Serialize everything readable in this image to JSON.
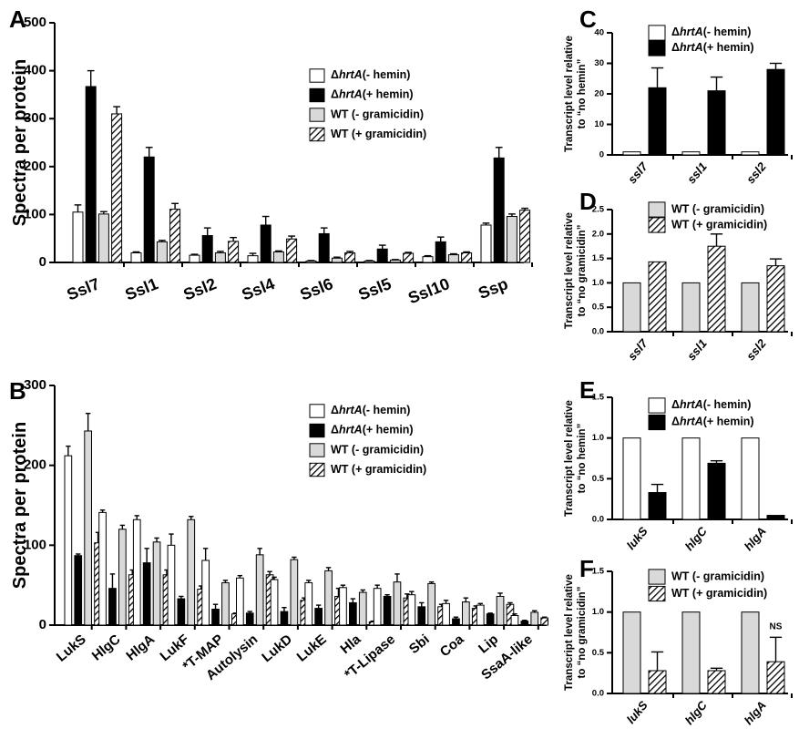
{
  "chart_data": [
    {
      "panel": "A",
      "type": "bar",
      "ylabel": "Spectra per protein",
      "ylim": [
        0,
        500
      ],
      "yticks": [
        0,
        100,
        200,
        300,
        400,
        500
      ],
      "categories": [
        "Ssl7",
        "Ssl1",
        "Ssl2",
        "Ssl4",
        "Ssl6",
        "Ssl5",
        "Ssl10",
        "Ssp"
      ],
      "series": [
        {
          "name": "ΔhrtA (- hemin)",
          "values": [
            105,
            20,
            15,
            14,
            3,
            3,
            12,
            78
          ],
          "errors": [
            15,
            2,
            2,
            5,
            1,
            1,
            2,
            4
          ],
          "style": "white"
        },
        {
          "name": "ΔhrtA (+ hemin)",
          "values": [
            367,
            220,
            56,
            78,
            60,
            28,
            43,
            218
          ],
          "errors": [
            33,
            20,
            16,
            18,
            12,
            8,
            10,
            22
          ],
          "style": "black"
        },
        {
          "name": "WT (- gramicidin)",
          "values": [
            101,
            43,
            20,
            22,
            9,
            5,
            16,
            96
          ],
          "errors": [
            5,
            3,
            3,
            2,
            2,
            1,
            2,
            5
          ],
          "style": "gray"
        },
        {
          "name": "WT (+ gramicidin)",
          "values": [
            310,
            111,
            44,
            49,
            20,
            19,
            20,
            109
          ],
          "errors": [
            15,
            12,
            8,
            6,
            3,
            2,
            2,
            4
          ],
          "style": "hatch"
        }
      ],
      "legend": "top-right"
    },
    {
      "panel": "B",
      "type": "bar",
      "ylabel": "Spectra per protein",
      "ylim": [
        0,
        300
      ],
      "yticks": [
        0,
        100,
        200,
        300
      ],
      "categories": [
        "LukS",
        "HlgC",
        "HlgA",
        "LukF",
        "*T-MAP",
        "Autolysin",
        "LukD",
        "LukE",
        "Hla",
        "*T-Lipase",
        "Sbi",
        "Coa",
        "Lip",
        "SsaA-like"
      ],
      "series": [
        {
          "name": "ΔhrtA (- hemin)",
          "values": [
            212,
            141,
            132,
            100,
            81,
            59,
            57,
            53,
            47,
            46,
            38,
            27,
            25,
            12
          ],
          "errors": [
            12,
            3,
            5,
            14,
            15,
            3,
            3,
            3,
            3,
            4,
            4,
            4,
            2,
            2
          ],
          "style": "white"
        },
        {
          "name": "ΔhrtA (+ hemin)",
          "values": [
            87,
            46,
            78,
            33,
            20,
            15,
            17,
            21,
            28,
            36,
            23,
            8,
            14,
            5
          ],
          "errors": [
            2,
            18,
            18,
            3,
            6,
            2,
            5,
            4,
            5,
            2,
            5,
            2,
            1,
            1
          ],
          "style": "black"
        },
        {
          "name": "WT (- gramicidin)",
          "values": [
            243,
            120,
            104,
            132,
            53,
            88,
            82,
            68,
            41,
            54,
            52,
            29,
            36,
            16
          ],
          "errors": [
            22,
            5,
            5,
            4,
            3,
            8,
            3,
            4,
            3,
            10,
            2,
            5,
            4,
            2
          ],
          "style": "gray"
        },
        {
          "name": "WT (+ gramicidin)",
          "values": [
            103,
            63,
            63,
            45,
            14,
            63,
            31,
            36,
            4,
            34,
            23,
            21,
            26,
            9
          ],
          "errors": [
            13,
            6,
            6,
            4,
            1,
            4,
            3,
            10,
            1,
            5,
            3,
            3,
            2,
            1
          ],
          "style": "hatch"
        }
      ],
      "legend": "top-right"
    },
    {
      "panel": "C",
      "type": "bar",
      "ylabel": [
        "Transcript level relative",
        "to “no hemin”"
      ],
      "ylim": [
        0,
        40
      ],
      "yticks": [
        0,
        10,
        20,
        30,
        40
      ],
      "categories": [
        "ssl7",
        "ssl1",
        "ssl2"
      ],
      "series": [
        {
          "name": "ΔhrtA (- hemin)",
          "values": [
            1,
            1,
            1
          ],
          "errors": [
            0,
            0,
            0
          ],
          "style": "white"
        },
        {
          "name": "ΔhrtA (+ hemin)",
          "values": [
            22,
            21,
            28
          ],
          "errors": [
            6.5,
            4.5,
            2
          ],
          "style": "black"
        }
      ],
      "legend": "top-center"
    },
    {
      "panel": "D",
      "type": "bar",
      "ylabel": [
        "Transcript level relative",
        "to “no gramicidin”"
      ],
      "ylim": [
        0,
        2.5
      ],
      "yticks": [
        "0.0",
        "0.5",
        "1.0",
        "1.5",
        "2.0",
        "2.5"
      ],
      "categories": [
        "ssl7",
        "ssl1",
        "ssl2"
      ],
      "series": [
        {
          "name": "WT (- gramicidin)",
          "values": [
            1,
            1,
            1
          ],
          "errors": [
            0,
            0,
            0
          ],
          "style": "gray"
        },
        {
          "name": "WT (+ gramicidin)",
          "values": [
            1.43,
            1.75,
            1.35
          ],
          "errors": [
            0,
            0.25,
            0.14
          ],
          "style": "hatch"
        }
      ],
      "legend": "top-center"
    },
    {
      "panel": "E",
      "type": "bar",
      "ylabel": [
        "Transcript level relative",
        "to “no hemin”"
      ],
      "ylim": [
        0,
        1.5
      ],
      "yticks": [
        "0.0",
        "0.5",
        "1.0",
        "1.5"
      ],
      "categories": [
        "lukS",
        "hlgC",
        "hlgA"
      ],
      "series": [
        {
          "name": "ΔhrtA (- hemin)",
          "values": [
            1,
            1,
            1
          ],
          "errors": [
            0,
            0,
            0
          ],
          "style": "white"
        },
        {
          "name": "ΔhrtA (+ hemin)",
          "values": [
            0.33,
            0.69,
            0.05
          ],
          "errors": [
            0.1,
            0.03,
            0
          ],
          "style": "black"
        }
      ],
      "legend": "top-center"
    },
    {
      "panel": "F",
      "type": "bar",
      "ylabel": [
        "Transcript level relative",
        "to “no gramicidin”"
      ],
      "ylim": [
        0,
        1.5
      ],
      "yticks": [
        "0.0",
        "0.5",
        "1.0",
        "1.5"
      ],
      "categories": [
        "lukS",
        "hlgC",
        "hlgA"
      ],
      "series": [
        {
          "name": "WT (- gramicidin)",
          "values": [
            1,
            1,
            1
          ],
          "errors": [
            0,
            0,
            0
          ],
          "style": "gray"
        },
        {
          "name": "WT (+ gramicidin)",
          "values": [
            0.28,
            0.28,
            0.39
          ],
          "errors": [
            0.23,
            0.03,
            0.3
          ],
          "style": "hatch"
        }
      ],
      "annotations": [
        {
          "category": "hlgA",
          "series": 1,
          "text": "NS"
        }
      ],
      "legend": "top-center"
    }
  ],
  "colors": {
    "white": "#ffffff",
    "black": "#000000",
    "gray": "#d9d9d9",
    "hatch": "#000000"
  }
}
